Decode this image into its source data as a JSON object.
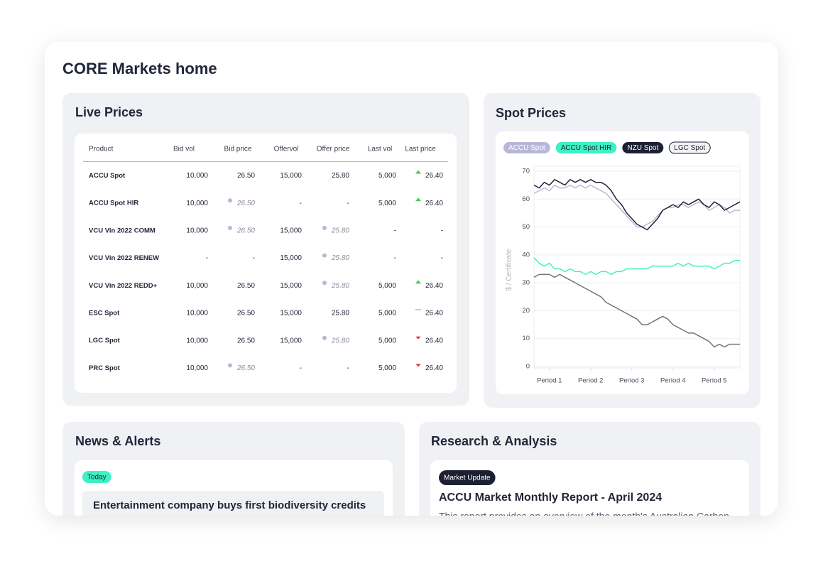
{
  "header": {
    "title": "CORE Markets home"
  },
  "live_prices": {
    "title": "Live Prices",
    "columns": [
      "Product",
      "Bid vol",
      "Bid price",
      "Offervol",
      "Offer price",
      "Last vol",
      "Last price"
    ],
    "rows": [
      [
        "ACCU Spot",
        "10,000",
        "26.50",
        "15,000",
        "25.80",
        "5,000",
        "26.40"
      ],
      [
        "ACCU Spot HIR",
        "10,000",
        "26.50",
        "-",
        "-",
        "5,000",
        "26.40"
      ],
      [
        "VCU Vin 2022 COMM",
        "10,000",
        "26.50",
        "15,000",
        "25.80",
        "-",
        "-"
      ],
      [
        "VCU Vin 2022 RENEW",
        "-",
        "-",
        "15,000",
        "25.80",
        "-",
        "-"
      ],
      [
        "VCU Vin 2022 REDD+",
        "10,000",
        "26.50",
        "15,000",
        "25.80",
        "5,000",
        "26.40"
      ],
      [
        "ESC Spot",
        "10,000",
        "26.50",
        "15,000",
        "25.80",
        "5,000",
        "26.40"
      ],
      [
        "LGC Spot",
        "10,000",
        "26.50",
        "15,000",
        "25.80",
        "5,000",
        "26.40"
      ],
      [
        "PRC Spot",
        "10,000",
        "26.50",
        "-",
        "-",
        "5,000",
        "26.40"
      ]
    ]
  },
  "chart_data": {
    "type": "line",
    "title": "Spot Prices",
    "y_label": "$ / Certificate",
    "x": [
      0,
      1,
      2,
      3,
      4,
      5,
      6,
      7,
      8,
      9,
      10,
      11,
      12,
      13,
      14,
      15,
      16,
      17,
      18,
      19,
      20,
      21,
      22,
      23,
      24,
      25,
      26,
      27,
      28,
      29,
      30,
      31,
      32,
      33,
      34,
      35,
      36,
      37,
      38,
      39,
      40
    ],
    "xlim": [
      0,
      40
    ],
    "xticks": [
      {
        "value": 3,
        "label": "Period 1"
      },
      {
        "value": 11,
        "label": "Period 2"
      },
      {
        "value": 19,
        "label": "Period 3"
      },
      {
        "value": 27,
        "label": "Period 4"
      },
      {
        "value": 35,
        "label": "Period 5"
      }
    ],
    "ylim": [
      0,
      70
    ],
    "yticks": [
      0,
      10,
      20,
      30,
      40,
      50,
      60,
      70
    ],
    "grid": true,
    "series": [
      {
        "name": "ACCU Spot",
        "color": "#b9b7d9",
        "values": [
          62,
          63,
          64,
          63,
          65,
          64,
          64,
          65,
          64,
          65,
          64,
          65,
          64,
          63,
          62,
          60,
          58,
          56,
          54,
          52,
          50,
          50,
          51,
          52,
          54,
          56,
          57,
          57,
          58,
          58,
          57,
          58,
          59,
          58,
          56,
          57,
          58,
          57,
          55,
          56,
          56
        ]
      },
      {
        "name": "ACCU Spot HIR",
        "color": "#3ff0c2",
        "values": [
          39,
          37,
          36,
          37,
          35,
          35,
          34,
          35,
          34,
          34,
          33,
          34,
          33,
          34,
          34,
          33,
          34,
          34,
          35,
          35,
          35,
          35,
          35,
          36,
          36,
          36,
          36,
          36,
          37,
          36,
          37,
          36,
          36,
          36,
          36,
          35,
          36,
          37,
          37,
          38,
          38
        ]
      },
      {
        "name": "NZU Spot",
        "color": "#1d2033",
        "values": [
          65,
          64,
          66,
          65,
          67,
          66,
          65,
          67,
          66,
          67,
          66,
          67,
          66,
          66,
          65,
          63,
          60,
          58,
          55,
          53,
          51,
          50,
          49,
          51,
          53,
          56,
          57,
          58,
          57,
          59,
          58,
          59,
          60,
          58,
          57,
          59,
          58,
          56,
          57,
          58,
          59
        ]
      },
      {
        "name": "LGC Spot",
        "color": "#72717f",
        "values": [
          32,
          33,
          33,
          33,
          32,
          33,
          32,
          31,
          30,
          29,
          28,
          27,
          26,
          25,
          23,
          22,
          21,
          20,
          19,
          18,
          17,
          15,
          15,
          16,
          17,
          18,
          17,
          15,
          14,
          13,
          12,
          12,
          11,
          10,
          9,
          7,
          8,
          7,
          8,
          8,
          8
        ]
      }
    ]
  },
  "news": {
    "title": "News & Alerts",
    "items": [
      {
        "tag": "Today",
        "headline": "Entertainment company buys first biodiversity credits"
      }
    ]
  },
  "research": {
    "title": "Research & Analysis",
    "items": [
      {
        "tag": "Market Update",
        "title": "ACCU Market Monthly Report - April 2024",
        "summary": "This report provides an overview of the month's Australian Carbon"
      }
    ]
  }
}
